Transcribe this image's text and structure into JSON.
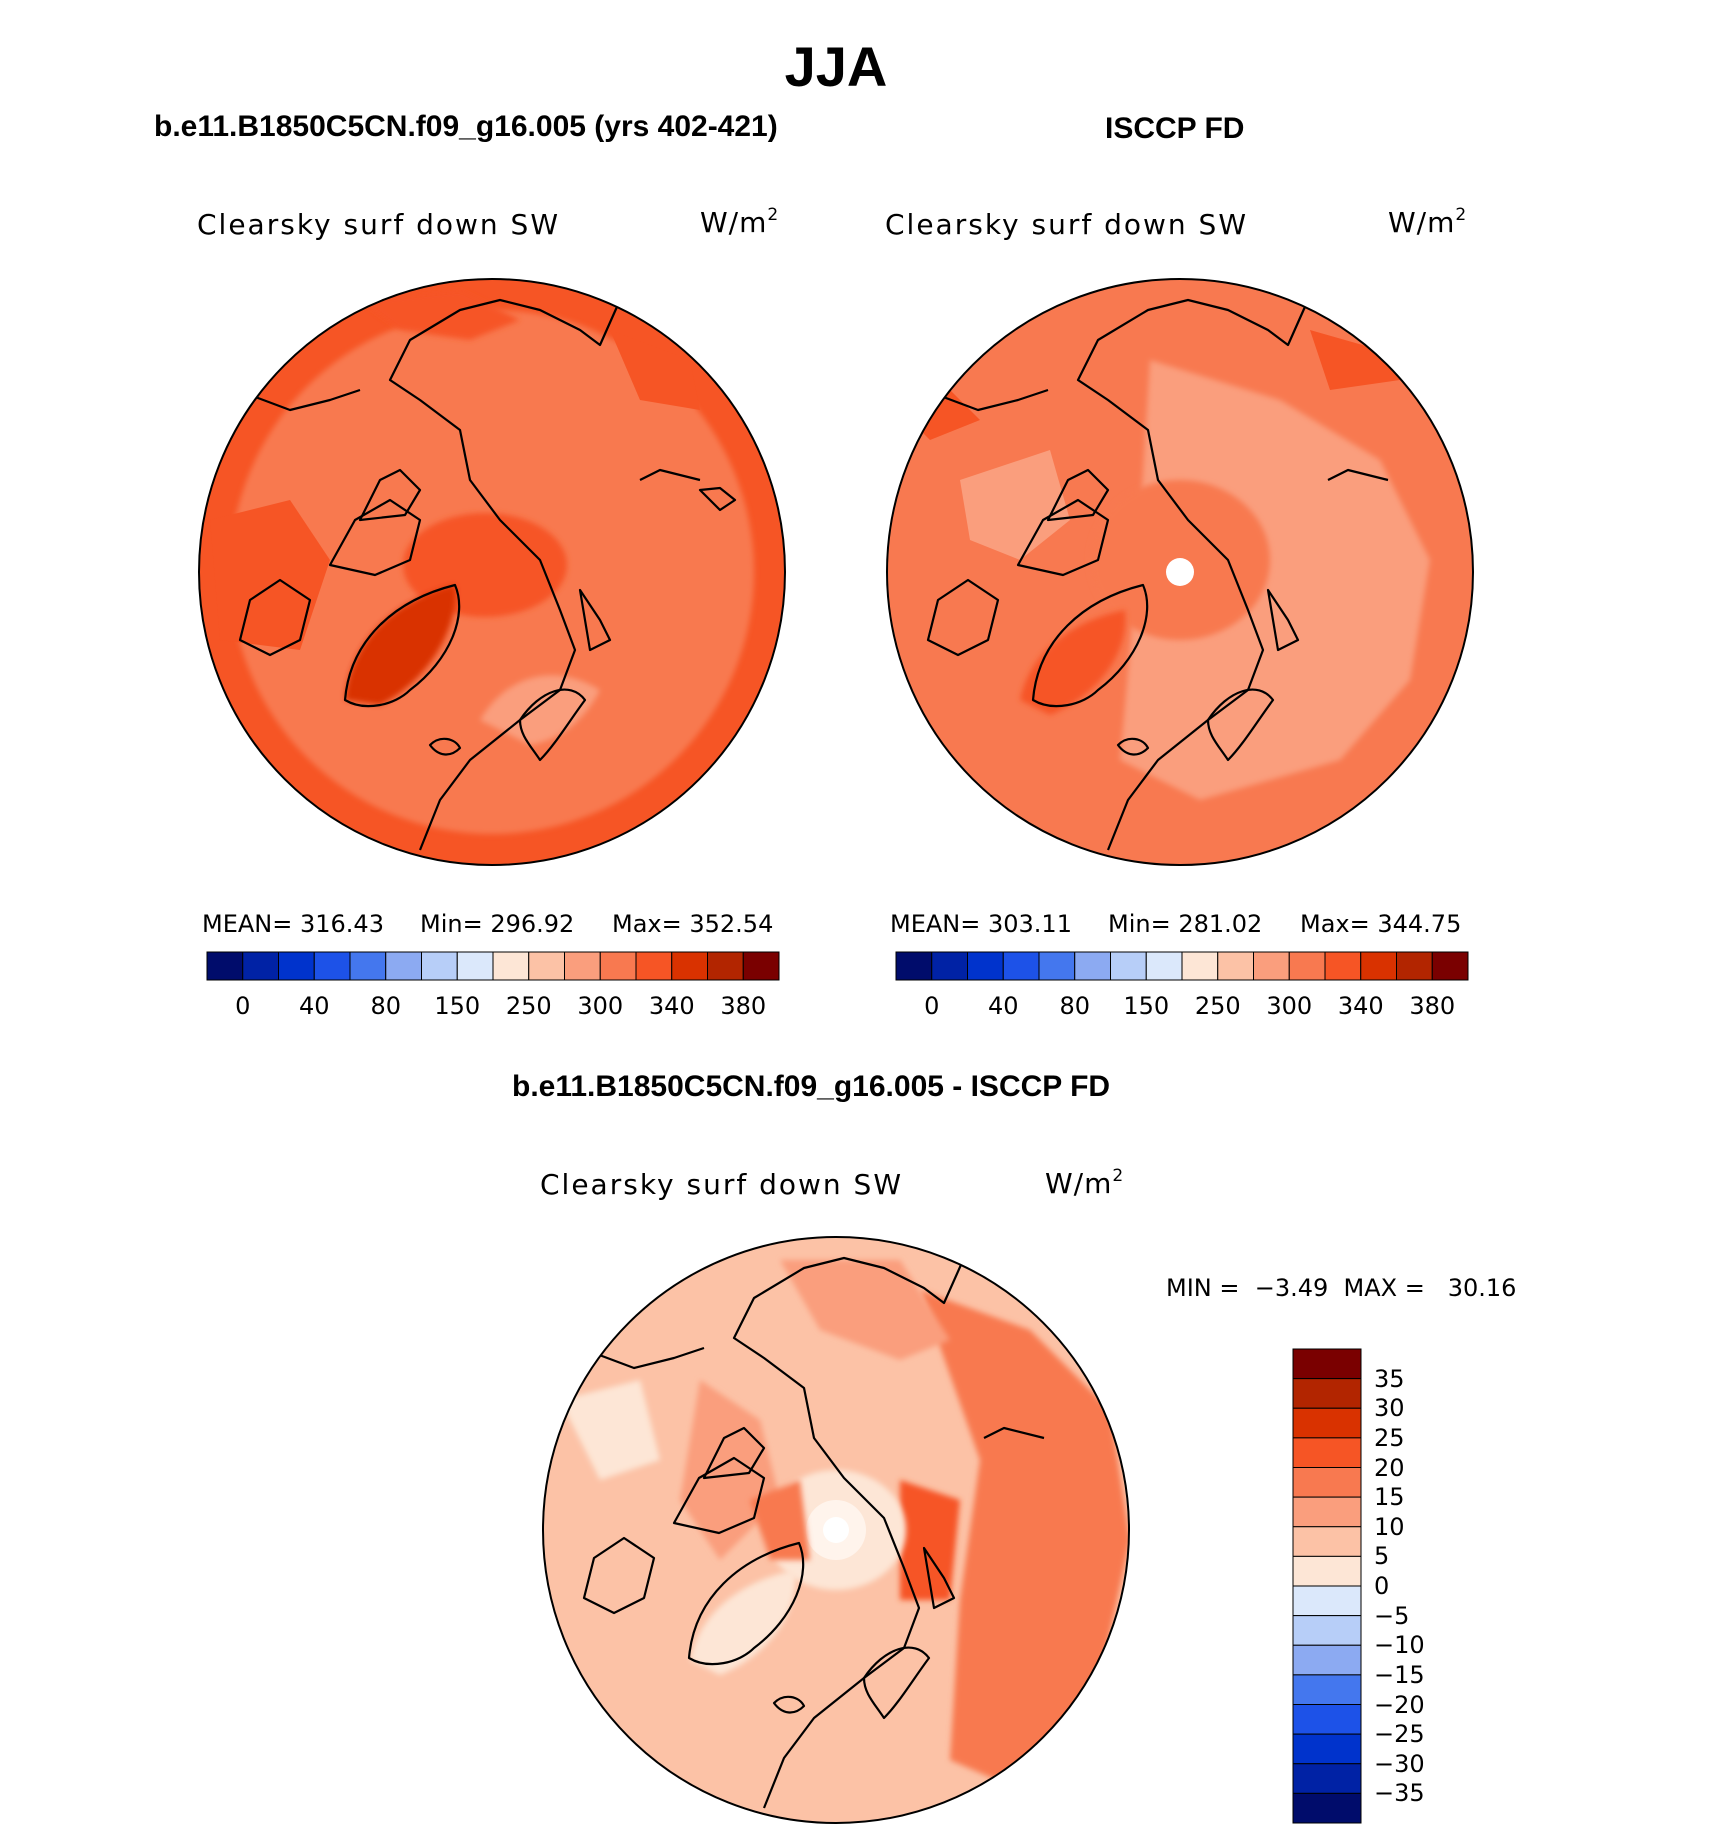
{
  "season": "JJA",
  "case_title": "b.e11.B1850C5CN.f09_g16.005 (yrs 402-421)",
  "obs_title": "ISCCP FD",
  "diff_title": "b.e11.B1850C5CN.f09_g16.005 - ISCCP FD",
  "variable": "Clearsky surf down SW",
  "units": "W/m",
  "units_exp": "2",
  "colors": {
    "abs_levels": [
      "#000c6b",
      "#0022a5",
      "#0033cc",
      "#1d52e8",
      "#4477ee",
      "#8caaf2",
      "#b7cef8",
      "#dbe8fb",
      "#fde6d6",
      "#fcc2a6",
      "#fa9e7d",
      "#f87950",
      "#f65525",
      "#d93200",
      "#b22500",
      "#7a0000"
    ],
    "diff_levels": [
      "#000c6b",
      "#0022a5",
      "#0033cc",
      "#1d52e8",
      "#4477ee",
      "#8caaf2",
      "#b7cef8",
      "#dbe8fb",
      "#fde6d6",
      "#fcc2a6",
      "#fa9e7d",
      "#f87950",
      "#f65525",
      "#d93200",
      "#b22500",
      "#7a0000"
    ]
  },
  "abs_ticks": [
    "0",
    "40",
    "80",
    "150",
    "250",
    "300",
    "340",
    "380"
  ],
  "diff_ticks": [
    "35",
    "30",
    "25",
    "20",
    "15",
    "10",
    "5",
    "0",
    "−5",
    "−10",
    "−15",
    "−20",
    "−25",
    "−30",
    "−35"
  ],
  "panels": {
    "model": {
      "mean_label": "MEAN= 316.43",
      "min_label": "Min= 296.92",
      "max_label": "Max= 352.54"
    },
    "obs": {
      "mean_label": "MEAN= 303.11",
      "min_label": "Min= 281.02",
      "max_label": "Max= 344.75"
    },
    "diff": {
      "minmax_label": "MIN =  −3.49  MAX =   30.16"
    }
  }
}
